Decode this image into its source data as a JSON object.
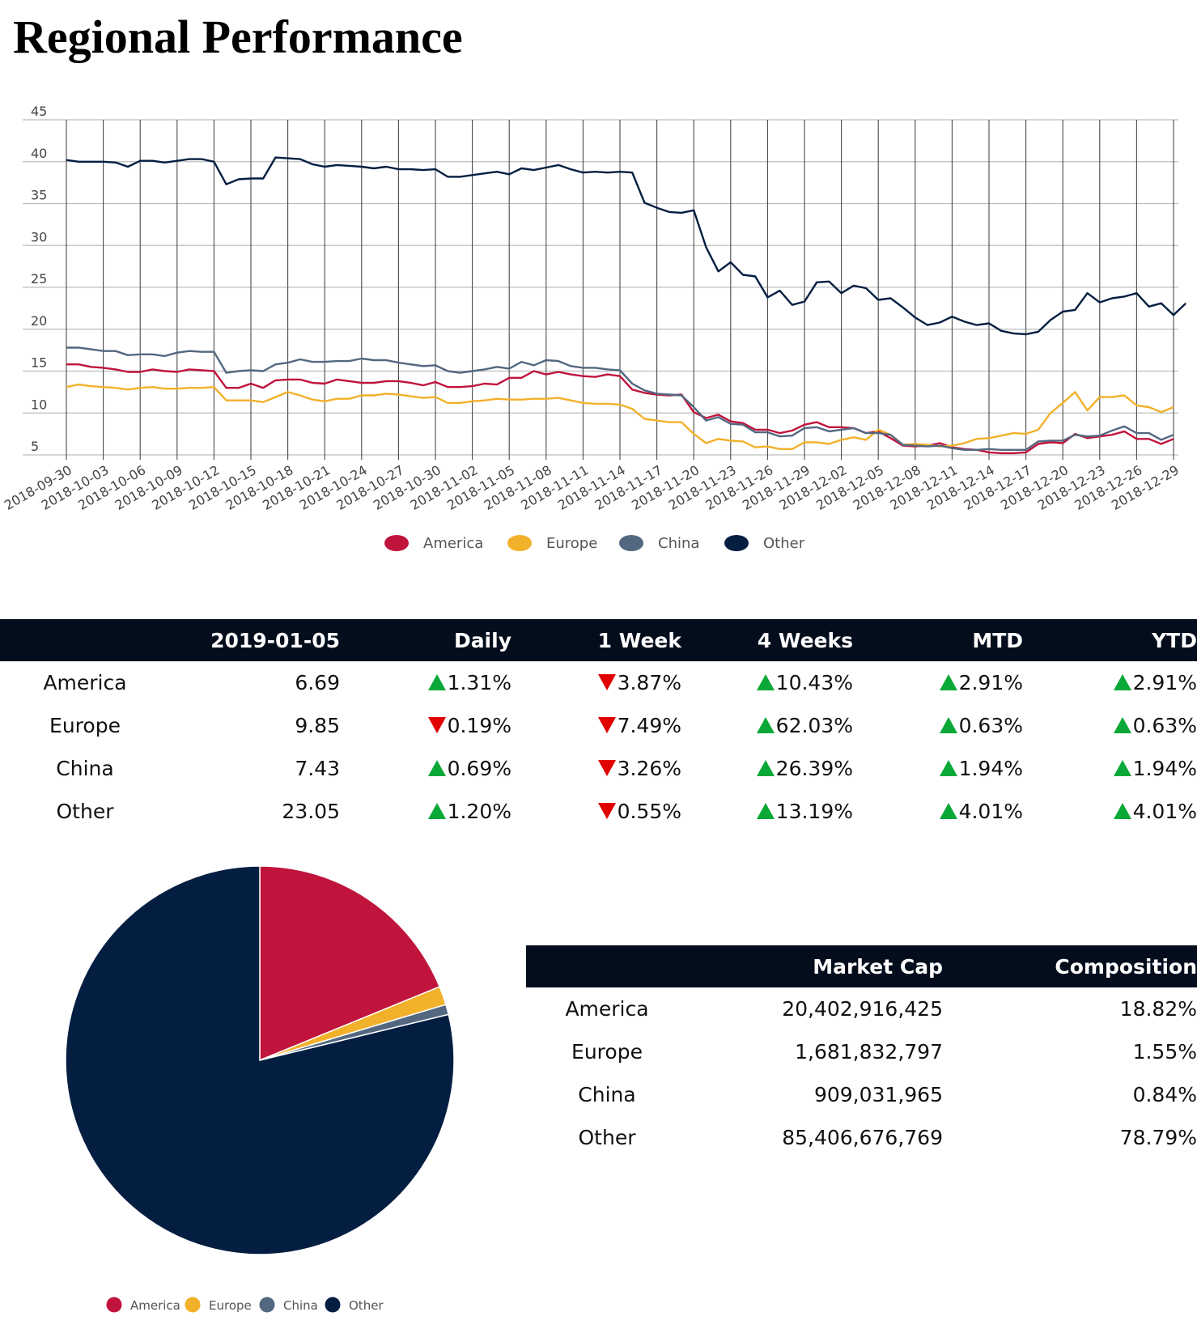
{
  "title": "Regional Performance",
  "colors": {
    "America": "#c0143c",
    "Europe": "#f2b12a",
    "China": "#536880",
    "Other": "#041e42",
    "header_bg": "#030d1c",
    "up": "#0aa837",
    "down": "#e00000"
  },
  "chart_data": [
    {
      "type": "line",
      "title": "",
      "ylim": [
        5,
        45
      ],
      "yticks": [
        5,
        10,
        15,
        20,
        25,
        30,
        35,
        40,
        45
      ],
      "x_start": "2018-09-30",
      "x_ticks": [
        "2018-09-30",
        "2018-10-03",
        "2018-10-06",
        "2018-10-09",
        "2018-10-12",
        "2018-10-15",
        "2018-10-18",
        "2018-10-21",
        "2018-10-24",
        "2018-10-27",
        "2018-10-30",
        "2018-11-02",
        "2018-11-05",
        "2018-11-08",
        "2018-11-11",
        "2018-11-14",
        "2018-11-17",
        "2018-11-20",
        "2018-11-23",
        "2018-11-26",
        "2018-11-29",
        "2018-12-02",
        "2018-12-05",
        "2018-12-08",
        "2018-12-11",
        "2018-12-14",
        "2018-12-17",
        "2018-12-20",
        "2018-12-23",
        "2018-12-26",
        "2018-12-29"
      ],
      "grid": true,
      "legend": "bottom",
      "series": [
        {
          "name": "America",
          "color": "#c0143c",
          "values": [
            15.8,
            15.8,
            15.5,
            15.4,
            15.2,
            14.9,
            14.9,
            15.2,
            15.0,
            14.9,
            15.2,
            15.1,
            15.0,
            13.0,
            13.0,
            13.5,
            13.0,
            13.9,
            14.0,
            14.0,
            13.6,
            13.5,
            14.0,
            13.8,
            13.6,
            13.6,
            13.8,
            13.8,
            13.6,
            13.3,
            13.7,
            13.1,
            13.1,
            13.2,
            13.5,
            13.4,
            14.2,
            14.2,
            15.0,
            14.6,
            14.9,
            14.6,
            14.4,
            14.3,
            14.6,
            14.4,
            12.8,
            12.4,
            12.2,
            12.1,
            12.2,
            10.1,
            9.4,
            9.8,
            9.0,
            8.8,
            8.0,
            8.0,
            7.6,
            7.9,
            8.6,
            8.9,
            8.3,
            8.3,
            8.2,
            7.6,
            7.8,
            7.0,
            6.1,
            6.0,
            6.1,
            6.4,
            5.9,
            5.7,
            5.6,
            5.3,
            5.2,
            5.2,
            5.3,
            6.3,
            6.5,
            6.4,
            7.5,
            7.0,
            7.2,
            7.4,
            7.8,
            6.9,
            6.9,
            6.3,
            6.9
          ]
        },
        {
          "name": "Europe",
          "color": "#f2b12a",
          "values": [
            13.1,
            13.4,
            13.2,
            13.1,
            13.0,
            12.8,
            13.0,
            13.1,
            12.9,
            12.9,
            13.0,
            13.0,
            13.1,
            11.5,
            11.5,
            11.5,
            11.3,
            11.9,
            12.5,
            12.1,
            11.6,
            11.4,
            11.7,
            11.7,
            12.1,
            12.1,
            12.3,
            12.2,
            12.0,
            11.8,
            11.9,
            11.2,
            11.2,
            11.4,
            11.5,
            11.7,
            11.6,
            11.6,
            11.7,
            11.7,
            11.8,
            11.5,
            11.2,
            11.1,
            11.1,
            11.0,
            10.5,
            9.3,
            9.1,
            8.9,
            8.9,
            7.5,
            6.4,
            6.9,
            6.7,
            6.6,
            5.9,
            6.0,
            5.7,
            5.7,
            6.5,
            6.5,
            6.3,
            6.8,
            7.1,
            6.8,
            8.0,
            7.4,
            6.2,
            6.3,
            6.2,
            6.0,
            6.1,
            6.4,
            6.9,
            7.0,
            7.3,
            7.6,
            7.5,
            8.0,
            10.0,
            11.2,
            12.5,
            10.3,
            11.9,
            11.9,
            12.1,
            10.9,
            10.7,
            10.1,
            10.7
          ]
        },
        {
          "name": "China",
          "color": "#536880",
          "values": [
            17.8,
            17.8,
            17.6,
            17.4,
            17.4,
            16.9,
            17.0,
            17.0,
            16.8,
            17.2,
            17.4,
            17.3,
            17.3,
            14.8,
            15.0,
            15.1,
            15.0,
            15.8,
            16.0,
            16.4,
            16.1,
            16.1,
            16.2,
            16.2,
            16.5,
            16.3,
            16.3,
            16.0,
            15.8,
            15.6,
            15.7,
            15.0,
            14.8,
            15.0,
            15.2,
            15.5,
            15.3,
            16.1,
            15.7,
            16.3,
            16.2,
            15.6,
            15.4,
            15.4,
            15.2,
            15.1,
            13.5,
            12.7,
            12.3,
            12.2,
            12.1,
            10.7,
            9.1,
            9.5,
            8.7,
            8.6,
            7.7,
            7.7,
            7.2,
            7.3,
            8.2,
            8.3,
            7.8,
            8.0,
            8.2,
            7.6,
            7.6,
            7.4,
            6.2,
            6.1,
            6.0,
            6.1,
            5.8,
            5.6,
            5.6,
            5.7,
            5.6,
            5.6,
            5.6,
            6.6,
            6.7,
            6.7,
            7.4,
            7.2,
            7.3,
            7.9,
            8.4,
            7.6,
            7.6,
            6.8,
            7.4
          ]
        },
        {
          "name": "Other",
          "color": "#041e42",
          "values": [
            40.2,
            40.0,
            40.0,
            40.0,
            39.9,
            39.4,
            40.1,
            40.1,
            39.9,
            40.1,
            40.3,
            40.3,
            40.0,
            37.3,
            37.9,
            38.0,
            38.0,
            40.5,
            40.4,
            40.3,
            39.7,
            39.4,
            39.6,
            39.5,
            39.4,
            39.2,
            39.4,
            39.1,
            39.1,
            39.0,
            39.1,
            38.2,
            38.2,
            38.4,
            38.6,
            38.8,
            38.5,
            39.2,
            39.0,
            39.3,
            39.6,
            39.1,
            38.7,
            38.8,
            38.7,
            38.8,
            38.7,
            35.1,
            34.5,
            34.0,
            33.9,
            34.2,
            29.8,
            26.9,
            28.0,
            26.5,
            26.3,
            23.8,
            24.6,
            22.9,
            23.3,
            25.6,
            25.7,
            24.3,
            25.2,
            24.9,
            23.5,
            23.7,
            22.6,
            21.4,
            20.5,
            20.8,
            21.5,
            20.9,
            20.5,
            20.7,
            19.8,
            19.5,
            19.4,
            19.7,
            21.1,
            22.1,
            22.3,
            24.3,
            23.2,
            23.7,
            23.9,
            24.3,
            22.7,
            23.1,
            21.7,
            23.1
          ]
        }
      ]
    },
    {
      "type": "pie",
      "title": "",
      "legend": "bottom",
      "labels": [
        "America",
        "Europe",
        "China",
        "Other"
      ],
      "values": [
        18.82,
        1.55,
        0.84,
        78.79
      ],
      "colors": [
        "#c0143c",
        "#f2b12a",
        "#536880",
        "#041e42"
      ]
    }
  ],
  "performance_table": {
    "headers": [
      "",
      "2019-01-05",
      "Daily",
      "1 Week",
      "4 Weeks",
      "MTD",
      "YTD"
    ],
    "rows": [
      {
        "name": "America",
        "value": "6.69",
        "daily": "1.31%",
        "daily_dir": "up",
        "week1": "3.87%",
        "week1_dir": "down",
        "week4": "10.43%",
        "week4_dir": "up",
        "mtd": "2.91%",
        "mtd_dir": "up",
        "ytd": "2.91%",
        "ytd_dir": "up"
      },
      {
        "name": "Europe",
        "value": "9.85",
        "daily": "0.19%",
        "daily_dir": "down",
        "week1": "7.49%",
        "week1_dir": "down",
        "week4": "62.03%",
        "week4_dir": "up",
        "mtd": "0.63%",
        "mtd_dir": "up",
        "ytd": "0.63%",
        "ytd_dir": "up"
      },
      {
        "name": "China",
        "value": "7.43",
        "daily": "0.69%",
        "daily_dir": "up",
        "week1": "3.26%",
        "week1_dir": "down",
        "week4": "26.39%",
        "week4_dir": "up",
        "mtd": "1.94%",
        "mtd_dir": "up",
        "ytd": "1.94%",
        "ytd_dir": "up"
      },
      {
        "name": "Other",
        "value": "23.05",
        "daily": "1.20%",
        "daily_dir": "up",
        "week1": "0.55%",
        "week1_dir": "down",
        "week4": "13.19%",
        "week4_dir": "up",
        "mtd": "4.01%",
        "mtd_dir": "up",
        "ytd": "4.01%",
        "ytd_dir": "up"
      }
    ]
  },
  "market_cap_table": {
    "headers": [
      "",
      "Market Cap",
      "Composition"
    ],
    "rows": [
      {
        "name": "America",
        "market_cap": "20,402,916,425",
        "composition": "18.82%"
      },
      {
        "name": "Europe",
        "market_cap": "1,681,832,797",
        "composition": "1.55%"
      },
      {
        "name": "China",
        "market_cap": "909,031,965",
        "composition": "0.84%"
      },
      {
        "name": "Other",
        "market_cap": "85,406,676,769",
        "composition": "78.79%"
      }
    ]
  }
}
